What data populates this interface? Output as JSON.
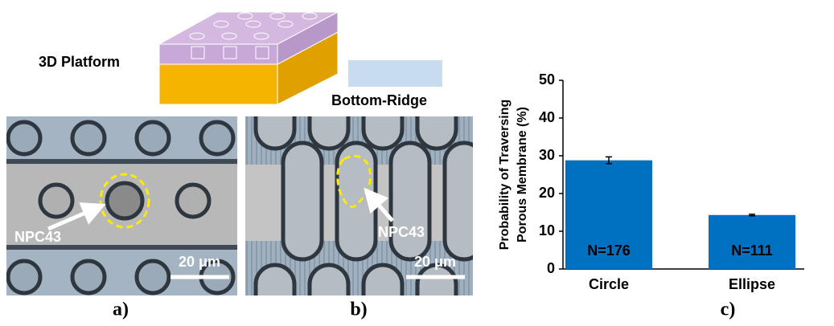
{
  "panel_a": {
    "label": "a)",
    "cell_label": "NPC43",
    "scale_bar": "20 μm"
  },
  "panel_b": {
    "label": "b)",
    "cell_label": "NPC43",
    "scale_bar": "20 μm",
    "platform_label": "3D Platform",
    "ridge_label": "Bottom-Ridge"
  },
  "panel_c": {
    "label": "c)"
  },
  "chart_data": {
    "type": "bar",
    "categories": [
      "Circle",
      "Ellipse"
    ],
    "values": [
      28.8,
      14.3
    ],
    "errors": [
      0.9,
      0.2
    ],
    "annotations": [
      "N=176",
      "N=111"
    ],
    "color": "#0070c0",
    "ylabel": [
      "Probability of Traversing",
      "Porous Membrane (%)"
    ],
    "ylim": [
      0,
      50
    ],
    "yticks": [
      0,
      10,
      20,
      30,
      40,
      50
    ]
  }
}
